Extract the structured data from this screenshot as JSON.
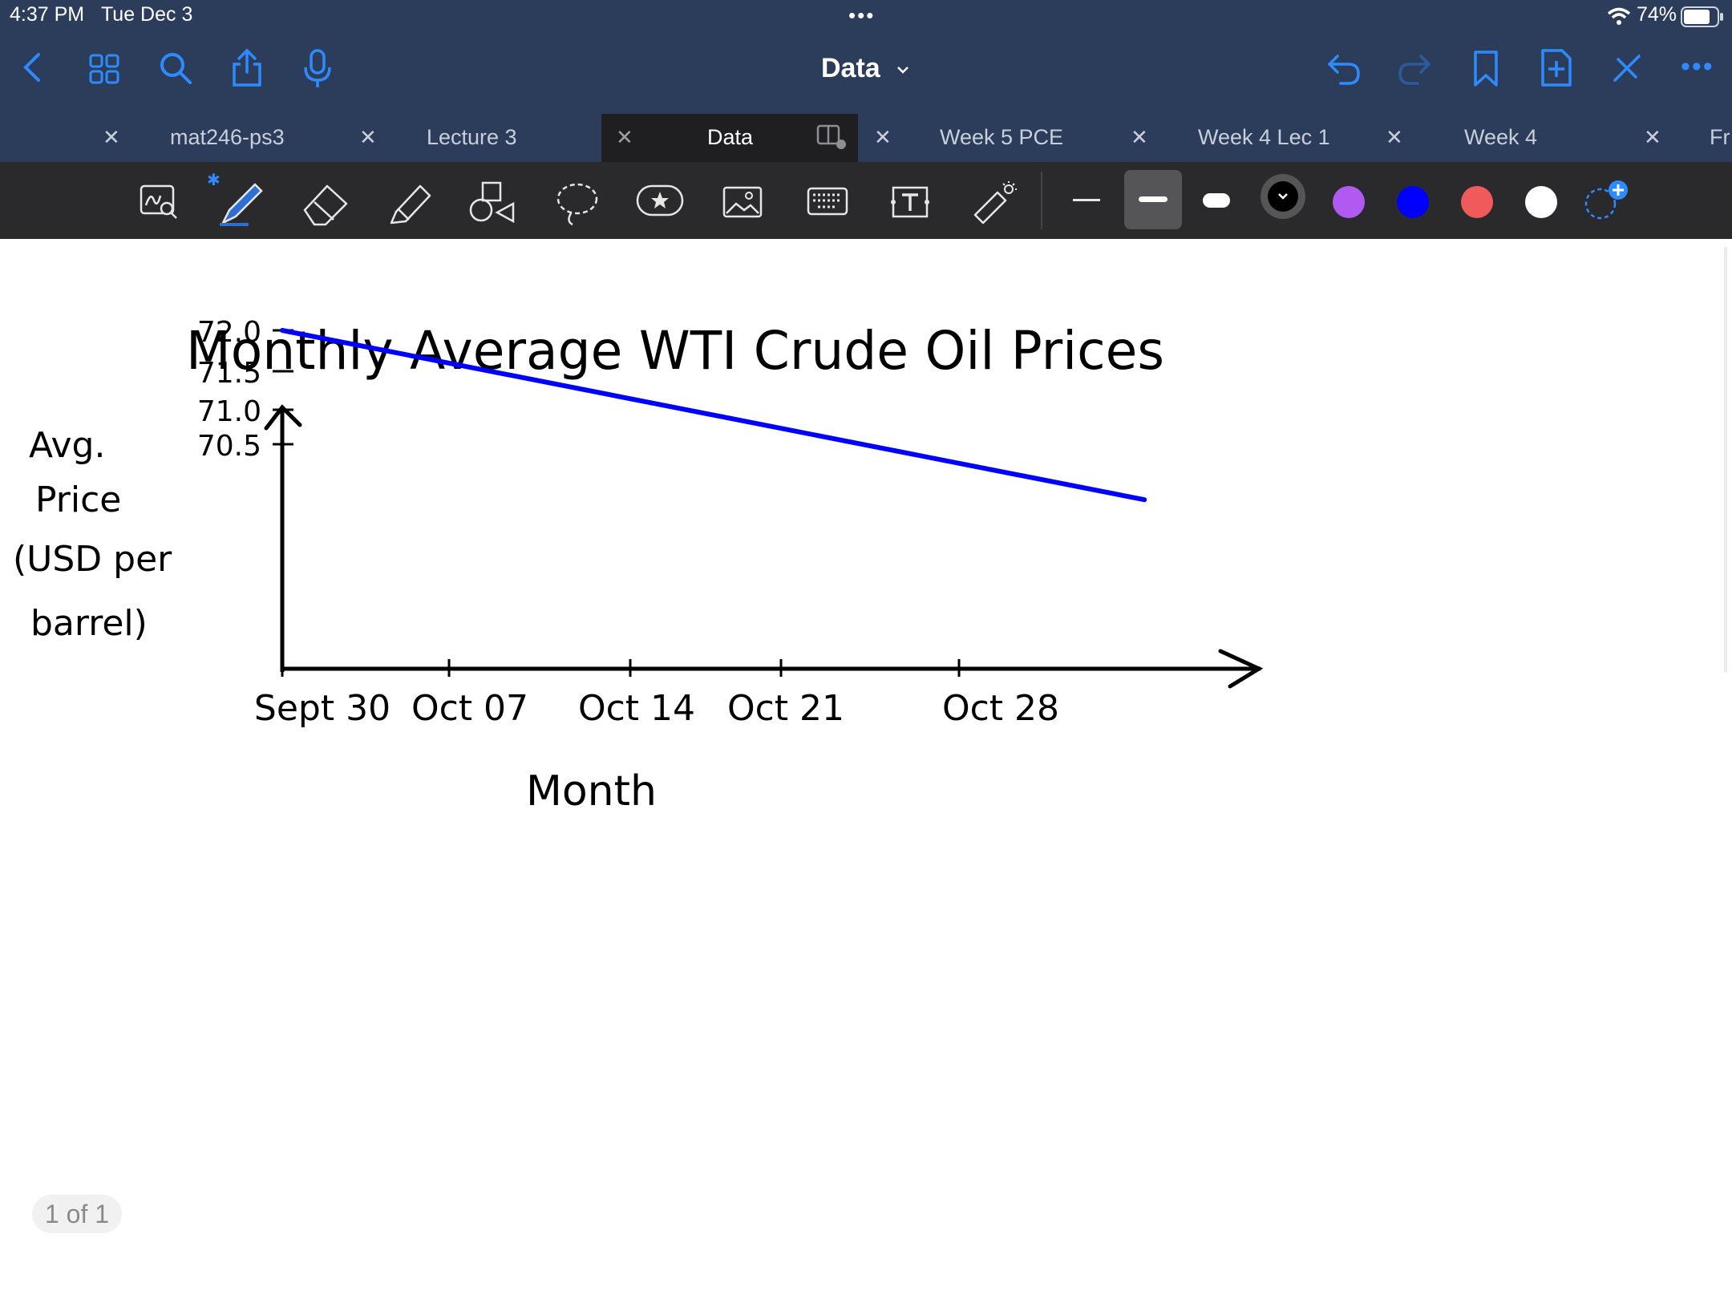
{
  "status_bar": {
    "time": "4:37 PM",
    "date": "Tue Dec 3",
    "battery": "74%",
    "wifi_icon": "wifi-icon",
    "battery_icon": "battery-icon"
  },
  "nav_bar": {
    "doc_title": "Data",
    "icons": [
      "back-icon",
      "grid-icon",
      "search-icon",
      "share-icon",
      "microphone-icon",
      "undo-icon",
      "redo-icon",
      "bookmark-icon",
      "add-page-icon",
      "close-pen-icon",
      "more-icon"
    ]
  },
  "tabs": [
    {
      "label": "mat246-ps3",
      "active": false
    },
    {
      "label": "Lecture 3",
      "active": false
    },
    {
      "label": "Data",
      "active": true
    },
    {
      "label": "Week 5 PCE",
      "active": false
    },
    {
      "label": "Week 4 Lec 1",
      "active": false
    },
    {
      "label": "Week 4",
      "active": false
    },
    {
      "label": "Fr",
      "active": false
    }
  ],
  "toolbar": {
    "tools": [
      "zoom-window-icon",
      "pen-icon",
      "eraser-icon",
      "highlighter-icon",
      "shapes-icon",
      "lasso-icon",
      "sticker-icon",
      "image-icon",
      "keyboard-icon",
      "text-box-icon",
      "laser-pointer-icon"
    ],
    "colors": {
      "black": "#000000",
      "purple": "#b05af2",
      "blue": "#0000ff",
      "red": "#f05a5a",
      "white": "#ffffff",
      "accent": "#1e7bff"
    }
  },
  "page_indicator": "1 of 1",
  "chart_data": {
    "type": "line",
    "title": "Monthly Average WTI Crude Oil Prices",
    "xlabel": "Month",
    "ylabel": "Avg. Price (USD per barrel)",
    "x_ticks": [
      "Sept 30",
      "Oct 07",
      "Oct 14",
      "Oct 21",
      "Oct 28"
    ],
    "y_ticks": [
      "72.0",
      "71.5",
      "71.0",
      "70.5"
    ],
    "series": [
      {
        "color": "#0000ff",
        "x": [
          "2024-09-30",
          "2024-11-01"
        ],
        "y": [
          72.0,
          69.8
        ]
      }
    ],
    "grid": false
  }
}
